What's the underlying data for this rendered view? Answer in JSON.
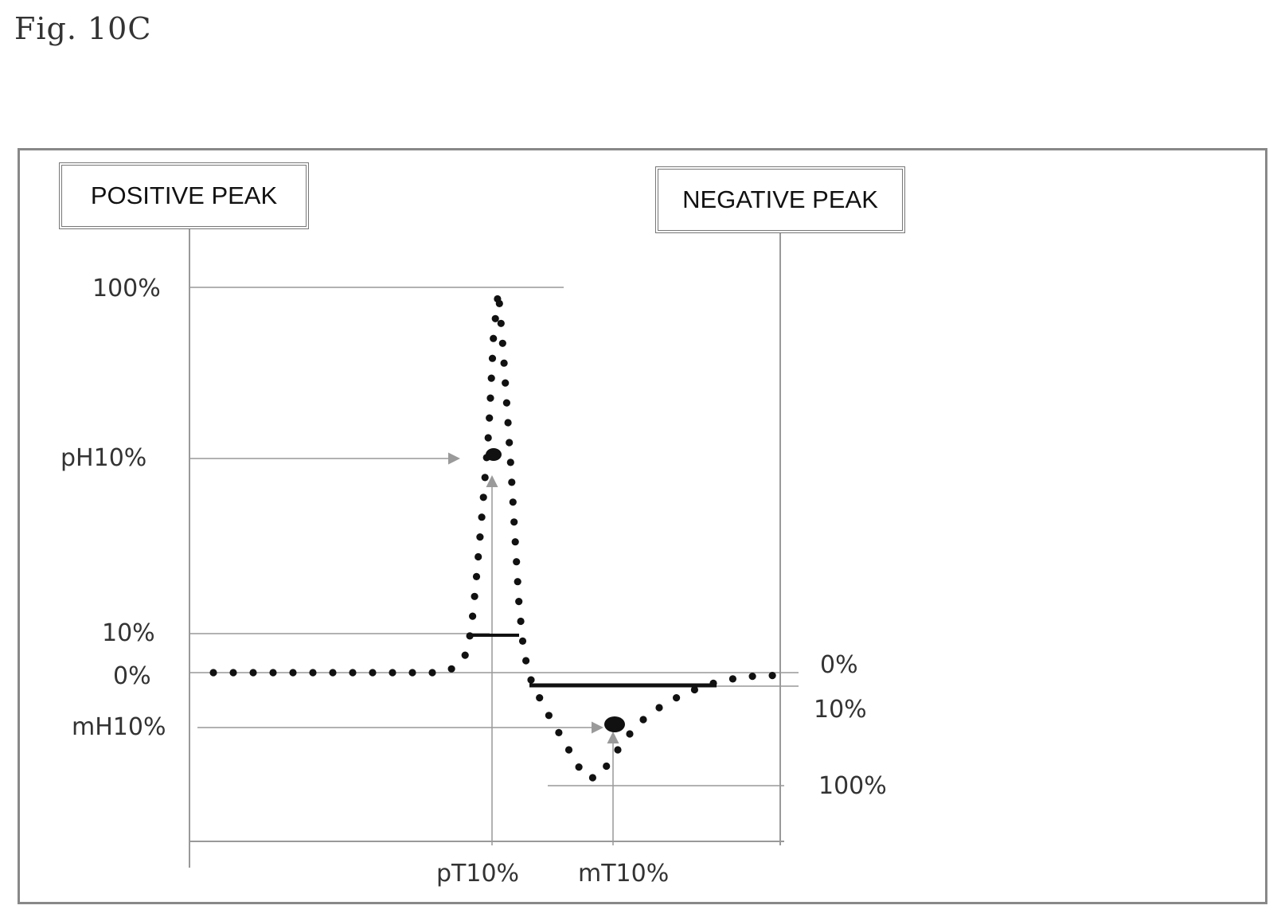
{
  "figure_label": "Fig. 10C",
  "boxes": {
    "positive": "POSITIVE PEAK",
    "negative": "NEGATIVE PEAK"
  },
  "left_axis": {
    "label_100": "100%",
    "label_ph10": "pH10%",
    "label_10": "10%",
    "label_0": "0%",
    "label_mh10": "mH10%"
  },
  "right_axis": {
    "label_0": "0%",
    "label_10": "10%",
    "label_100": "100%"
  },
  "bottom_axis": {
    "label_pt10": "pT10%",
    "label_mt10": "mT10%"
  },
  "colors": {
    "dots": "#111111",
    "guides": "#999999",
    "arrows": "#9a9a9a",
    "bars": "#111111"
  }
}
